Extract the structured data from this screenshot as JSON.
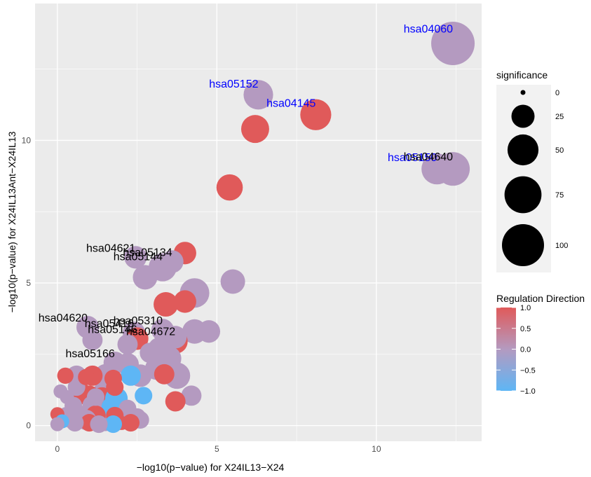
{
  "chart_data": {
    "type": "scatter",
    "xlabel": "−log10(p−value) for X24IL13−X24",
    "ylabel": "−log10(p−value) for X24IL13Ant−X24IL13",
    "xlim": [
      -0.7,
      13.3
    ],
    "ylim": [
      -0.55,
      14.8
    ],
    "x_ticks": [
      0,
      5,
      10
    ],
    "y_ticks": [
      0,
      5,
      10
    ],
    "grid": true,
    "size_legend": {
      "title": "significance",
      "values": [
        0,
        25,
        50,
        75,
        100
      ],
      "labels": [
        "0",
        "25",
        "50",
        "75",
        "100"
      ]
    },
    "color_legend": {
      "title": "Regulation Direction",
      "range": [
        -1,
        1
      ],
      "ticks": [
        1,
        0.5,
        0,
        -0.5,
        -1
      ],
      "tick_labels": [
        "1.0",
        "0.5",
        "0.0",
        "−0.5",
        "−1.0"
      ],
      "colors": [
        "#e05a5a",
        "#b49ac0",
        "#5eb6f5"
      ]
    },
    "points": [
      {
        "x": 12.4,
        "y": 13.4,
        "sig": 100,
        "dir": 0,
        "label": "hsa04060",
        "label_color": "#0000ff"
      },
      {
        "x": 6.3,
        "y": 11.6,
        "sig": 40,
        "dir": 0,
        "label": "hsa05152",
        "label_color": "#0000ff"
      },
      {
        "x": 8.1,
        "y": 10.9,
        "sig": 45,
        "dir": 1,
        "label": "hsa04145",
        "label_color": "#0000ff"
      },
      {
        "x": 6.2,
        "y": 10.4,
        "sig": 35,
        "dir": 1
      },
      {
        "x": 11.9,
        "y": 9.0,
        "sig": 45,
        "dir": 0,
        "label": "hsa05150",
        "label_color": "#0000ff"
      },
      {
        "x": 12.4,
        "y": 9.0,
        "sig": 55,
        "dir": 0,
        "label": "hsa04640",
        "label_color": "#000000"
      },
      {
        "x": 5.4,
        "y": 8.35,
        "sig": 30,
        "dir": 1
      },
      {
        "x": 4.0,
        "y": 6.05,
        "sig": 20,
        "dir": 1
      },
      {
        "x": 2.45,
        "y": 5.9,
        "sig": 20,
        "dir": 0,
        "label": "hsa04621",
        "label_color": "#000000"
      },
      {
        "x": 3.6,
        "y": 5.75,
        "sig": 20,
        "dir": 0,
        "label": "hsa05134",
        "label_color": "#000000"
      },
      {
        "x": 3.3,
        "y": 5.55,
        "sig": 35,
        "dir": 0,
        "label": "hsa05144",
        "label_color": "#000000"
      },
      {
        "x": 2.75,
        "y": 5.2,
        "sig": 25,
        "dir": 0
      },
      {
        "x": 5.5,
        "y": 5.05,
        "sig": 25,
        "dir": 0
      },
      {
        "x": 4.3,
        "y": 4.65,
        "sig": 40,
        "dir": 0
      },
      {
        "x": 4.0,
        "y": 4.35,
        "sig": 20,
        "dir": 1
      },
      {
        "x": 3.4,
        "y": 4.25,
        "sig": 25,
        "dir": 1
      },
      {
        "x": 0.95,
        "y": 3.45,
        "sig": 20,
        "dir": 0,
        "label": "hsa04620",
        "label_color": "#000000"
      },
      {
        "x": 3.3,
        "y": 3.35,
        "sig": 20,
        "dir": 0,
        "label": "hsa05310",
        "label_color": "#000000"
      },
      {
        "x": 4.3,
        "y": 3.3,
        "sig": 25,
        "dir": 0
      },
      {
        "x": 4.75,
        "y": 3.3,
        "sig": 20,
        "dir": 0
      },
      {
        "x": 2.4,
        "y": 3.25,
        "sig": 20,
        "dir": 0,
        "label": "hsa05416",
        "label_color": "#000000"
      },
      {
        "x": 3.7,
        "y": 3.1,
        "sig": 20,
        "dir": 0
      },
      {
        "x": 2.5,
        "y": 3.05,
        "sig": 20,
        "dir": 1,
        "label": "hsa05146",
        "label_color": "#000000"
      },
      {
        "x": 1.1,
        "y": 3.0,
        "sig": 15,
        "dir": 0
      },
      {
        "x": 3.7,
        "y": 2.95,
        "sig": 25,
        "dir": 1,
        "label": "hsa04672",
        "label_color": "#000000"
      },
      {
        "x": 2.2,
        "y": 2.85,
        "sig": 15,
        "dir": 0
      },
      {
        "x": 3.2,
        "y": 2.7,
        "sig": 20,
        "dir": 0
      },
      {
        "x": 2.9,
        "y": 2.55,
        "sig": 15,
        "dir": 0
      },
      {
        "x": 3.5,
        "y": 2.35,
        "sig": 25,
        "dir": 0
      },
      {
        "x": 1.8,
        "y": 2.2,
        "sig": 20,
        "dir": 0,
        "label": "hsa05166",
        "label_color": "#000000"
      },
      {
        "x": 2.2,
        "y": 2.15,
        "sig": 20,
        "dir": 0
      },
      {
        "x": 3.1,
        "y": 2.0,
        "sig": 20,
        "dir": 0
      },
      {
        "x": 3.55,
        "y": 1.95,
        "sig": 25,
        "dir": 0
      },
      {
        "x": 3.75,
        "y": 1.75,
        "sig": 30,
        "dir": 0
      },
      {
        "x": 3.35,
        "y": 1.8,
        "sig": 15,
        "dir": 1
      },
      {
        "x": 2.6,
        "y": 1.75,
        "sig": 20,
        "dir": 0
      },
      {
        "x": 2.3,
        "y": 1.75,
        "sig": 15,
        "dir": -1
      },
      {
        "x": 1.5,
        "y": 1.8,
        "sig": 15,
        "dir": 0
      },
      {
        "x": 1.1,
        "y": 1.75,
        "sig": 15,
        "dir": 1
      },
      {
        "x": 0.6,
        "y": 1.75,
        "sig": 15,
        "dir": 0
      },
      {
        "x": 0.25,
        "y": 1.75,
        "sig": 8,
        "dir": 1
      },
      {
        "x": 0.9,
        "y": 1.7,
        "sig": 8,
        "dir": 1
      },
      {
        "x": 1.75,
        "y": 1.65,
        "sig": 10,
        "dir": 1
      },
      {
        "x": 1.8,
        "y": 1.35,
        "sig": 10,
        "dir": 1
      },
      {
        "x": 0.6,
        "y": 1.35,
        "sig": 10,
        "dir": 0
      },
      {
        "x": 0.1,
        "y": 1.2,
        "sig": 5,
        "dir": 0
      },
      {
        "x": 1.5,
        "y": 1.15,
        "sig": 25,
        "dir": 0
      },
      {
        "x": 0.8,
        "y": 1.1,
        "sig": 15,
        "dir": 1
      },
      {
        "x": 1.0,
        "y": 1.05,
        "sig": 15,
        "dir": 1
      },
      {
        "x": 4.2,
        "y": 1.05,
        "sig": 15,
        "dir": 0
      },
      {
        "x": 2.7,
        "y": 1.05,
        "sig": 10,
        "dir": -1
      },
      {
        "x": 0.3,
        "y": 1.0,
        "sig": 5,
        "dir": 0
      },
      {
        "x": 1.2,
        "y": 1.0,
        "sig": 10,
        "dir": 0
      },
      {
        "x": 1.4,
        "y": 0.95,
        "sig": 20,
        "dir": 1
      },
      {
        "x": 1.85,
        "y": 0.95,
        "sig": 20,
        "dir": -1
      },
      {
        "x": 3.7,
        "y": 0.85,
        "sig": 15,
        "dir": 1
      },
      {
        "x": 0.5,
        "y": 0.7,
        "sig": 10,
        "dir": 0
      },
      {
        "x": 1.1,
        "y": 0.7,
        "sig": 15,
        "dir": 0
      },
      {
        "x": 1.7,
        "y": 0.65,
        "sig": 15,
        "dir": -1
      },
      {
        "x": 2.2,
        "y": 0.6,
        "sig": 10,
        "dir": 0
      },
      {
        "x": 0.0,
        "y": 0.4,
        "sig": 5,
        "dir": 1
      },
      {
        "x": 0.7,
        "y": 0.4,
        "sig": 10,
        "dir": 0
      },
      {
        "x": 1.2,
        "y": 0.35,
        "sig": 15,
        "dir": 1
      },
      {
        "x": 1.8,
        "y": 0.35,
        "sig": 10,
        "dir": 1
      },
      {
        "x": 2.5,
        "y": 0.3,
        "sig": 10,
        "dir": 0
      },
      {
        "x": 0.3,
        "y": 0.3,
        "sig": 15,
        "dir": 0
      },
      {
        "x": 0.9,
        "y": 0.2,
        "sig": 15,
        "dir": 0
      },
      {
        "x": 1.5,
        "y": 0.2,
        "sig": 20,
        "dir": 0
      },
      {
        "x": 2.0,
        "y": 0.2,
        "sig": 15,
        "dir": 1
      },
      {
        "x": 2.6,
        "y": 0.2,
        "sig": 10,
        "dir": 0
      },
      {
        "x": 0.15,
        "y": 0.15,
        "sig": 5,
        "dir": -1
      },
      {
        "x": 1.0,
        "y": 0.1,
        "sig": 10,
        "dir": 1
      },
      {
        "x": 0.55,
        "y": 0.1,
        "sig": 10,
        "dir": 0
      },
      {
        "x": 2.3,
        "y": 0.1,
        "sig": 10,
        "dir": 1
      },
      {
        "x": 1.75,
        "y": 0.05,
        "sig": 10,
        "dir": -1
      },
      {
        "x": 1.3,
        "y": 0.05,
        "sig": 10,
        "dir": 0
      },
      {
        "x": 0.0,
        "y": 0.05,
        "sig": 5,
        "dir": 0
      }
    ]
  }
}
